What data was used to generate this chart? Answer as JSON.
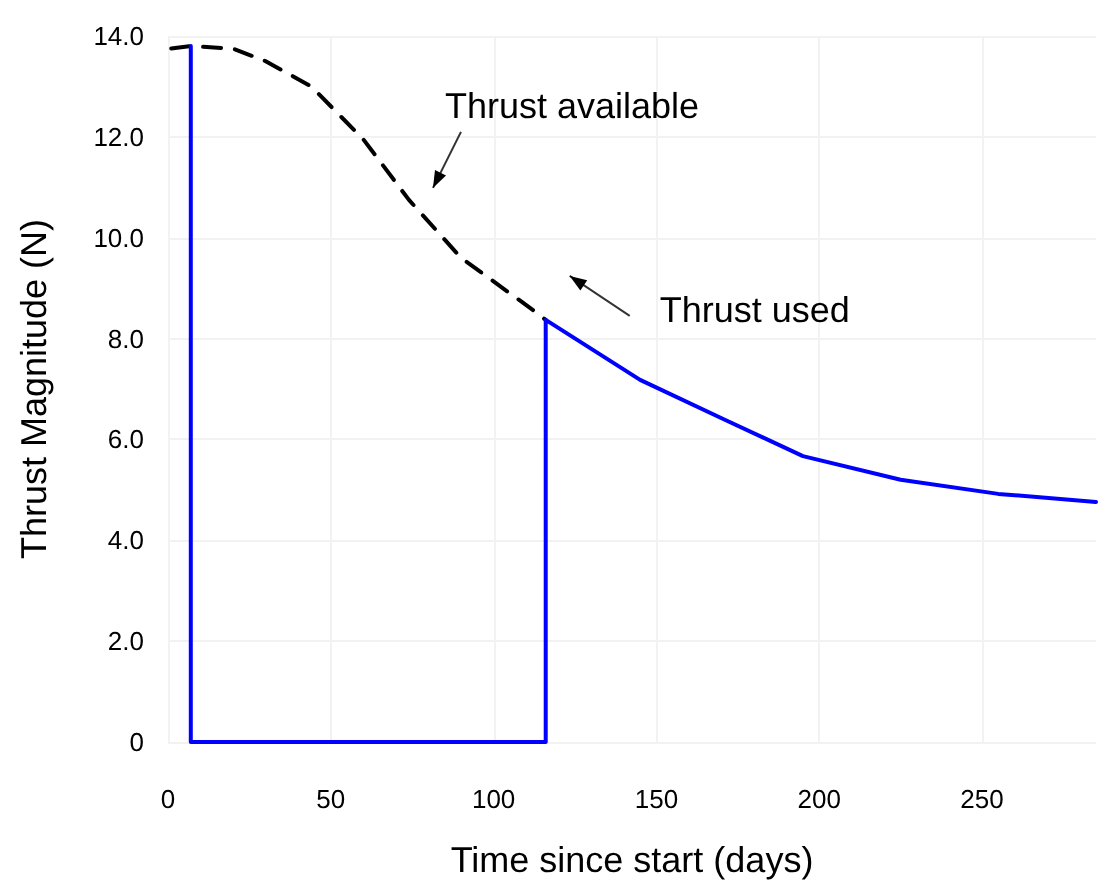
{
  "chart_data": {
    "type": "line",
    "xlabel": "Time since start (days)",
    "ylabel": "Thrust Magnitude (N)",
    "xlim": [
      0,
      285
    ],
    "xticks": [
      0,
      50,
      100,
      150,
      200,
      250
    ],
    "ylim": [
      0,
      14
    ],
    "yticks": [
      {
        "value": 0,
        "label": "0"
      },
      {
        "value": 2,
        "label": "2.0"
      },
      {
        "value": 4,
        "label": "4.0"
      },
      {
        "value": 6,
        "label": "6.0"
      },
      {
        "value": 8,
        "label": "8.0"
      },
      {
        "value": 10,
        "label": "10.0"
      },
      {
        "value": 12,
        "label": "12.0"
      },
      {
        "value": 14,
        "label": "14.0"
      }
    ],
    "grid": true,
    "legend": false,
    "marker": "none",
    "series": [
      {
        "name": "Thrust available",
        "color": "#000000",
        "line_style": "dashed",
        "x": [
          1,
          7,
          20,
          30,
          44,
          60,
          74,
          90,
          112,
          116
        ],
        "values": [
          13.75,
          13.8,
          13.75,
          13.5,
          13.0,
          11.95,
          10.75,
          9.6,
          8.57,
          8.37
        ]
      },
      {
        "name": "Thrust used",
        "color": "#0000ff",
        "line_style": "solid",
        "x": [
          7,
          7,
          116,
          116,
          145,
          171,
          195,
          225,
          255,
          285
        ],
        "values": [
          13.8,
          0,
          0,
          8.37,
          7.18,
          6.39,
          5.67,
          5.2,
          4.92,
          4.76
        ]
      }
    ]
  }
}
